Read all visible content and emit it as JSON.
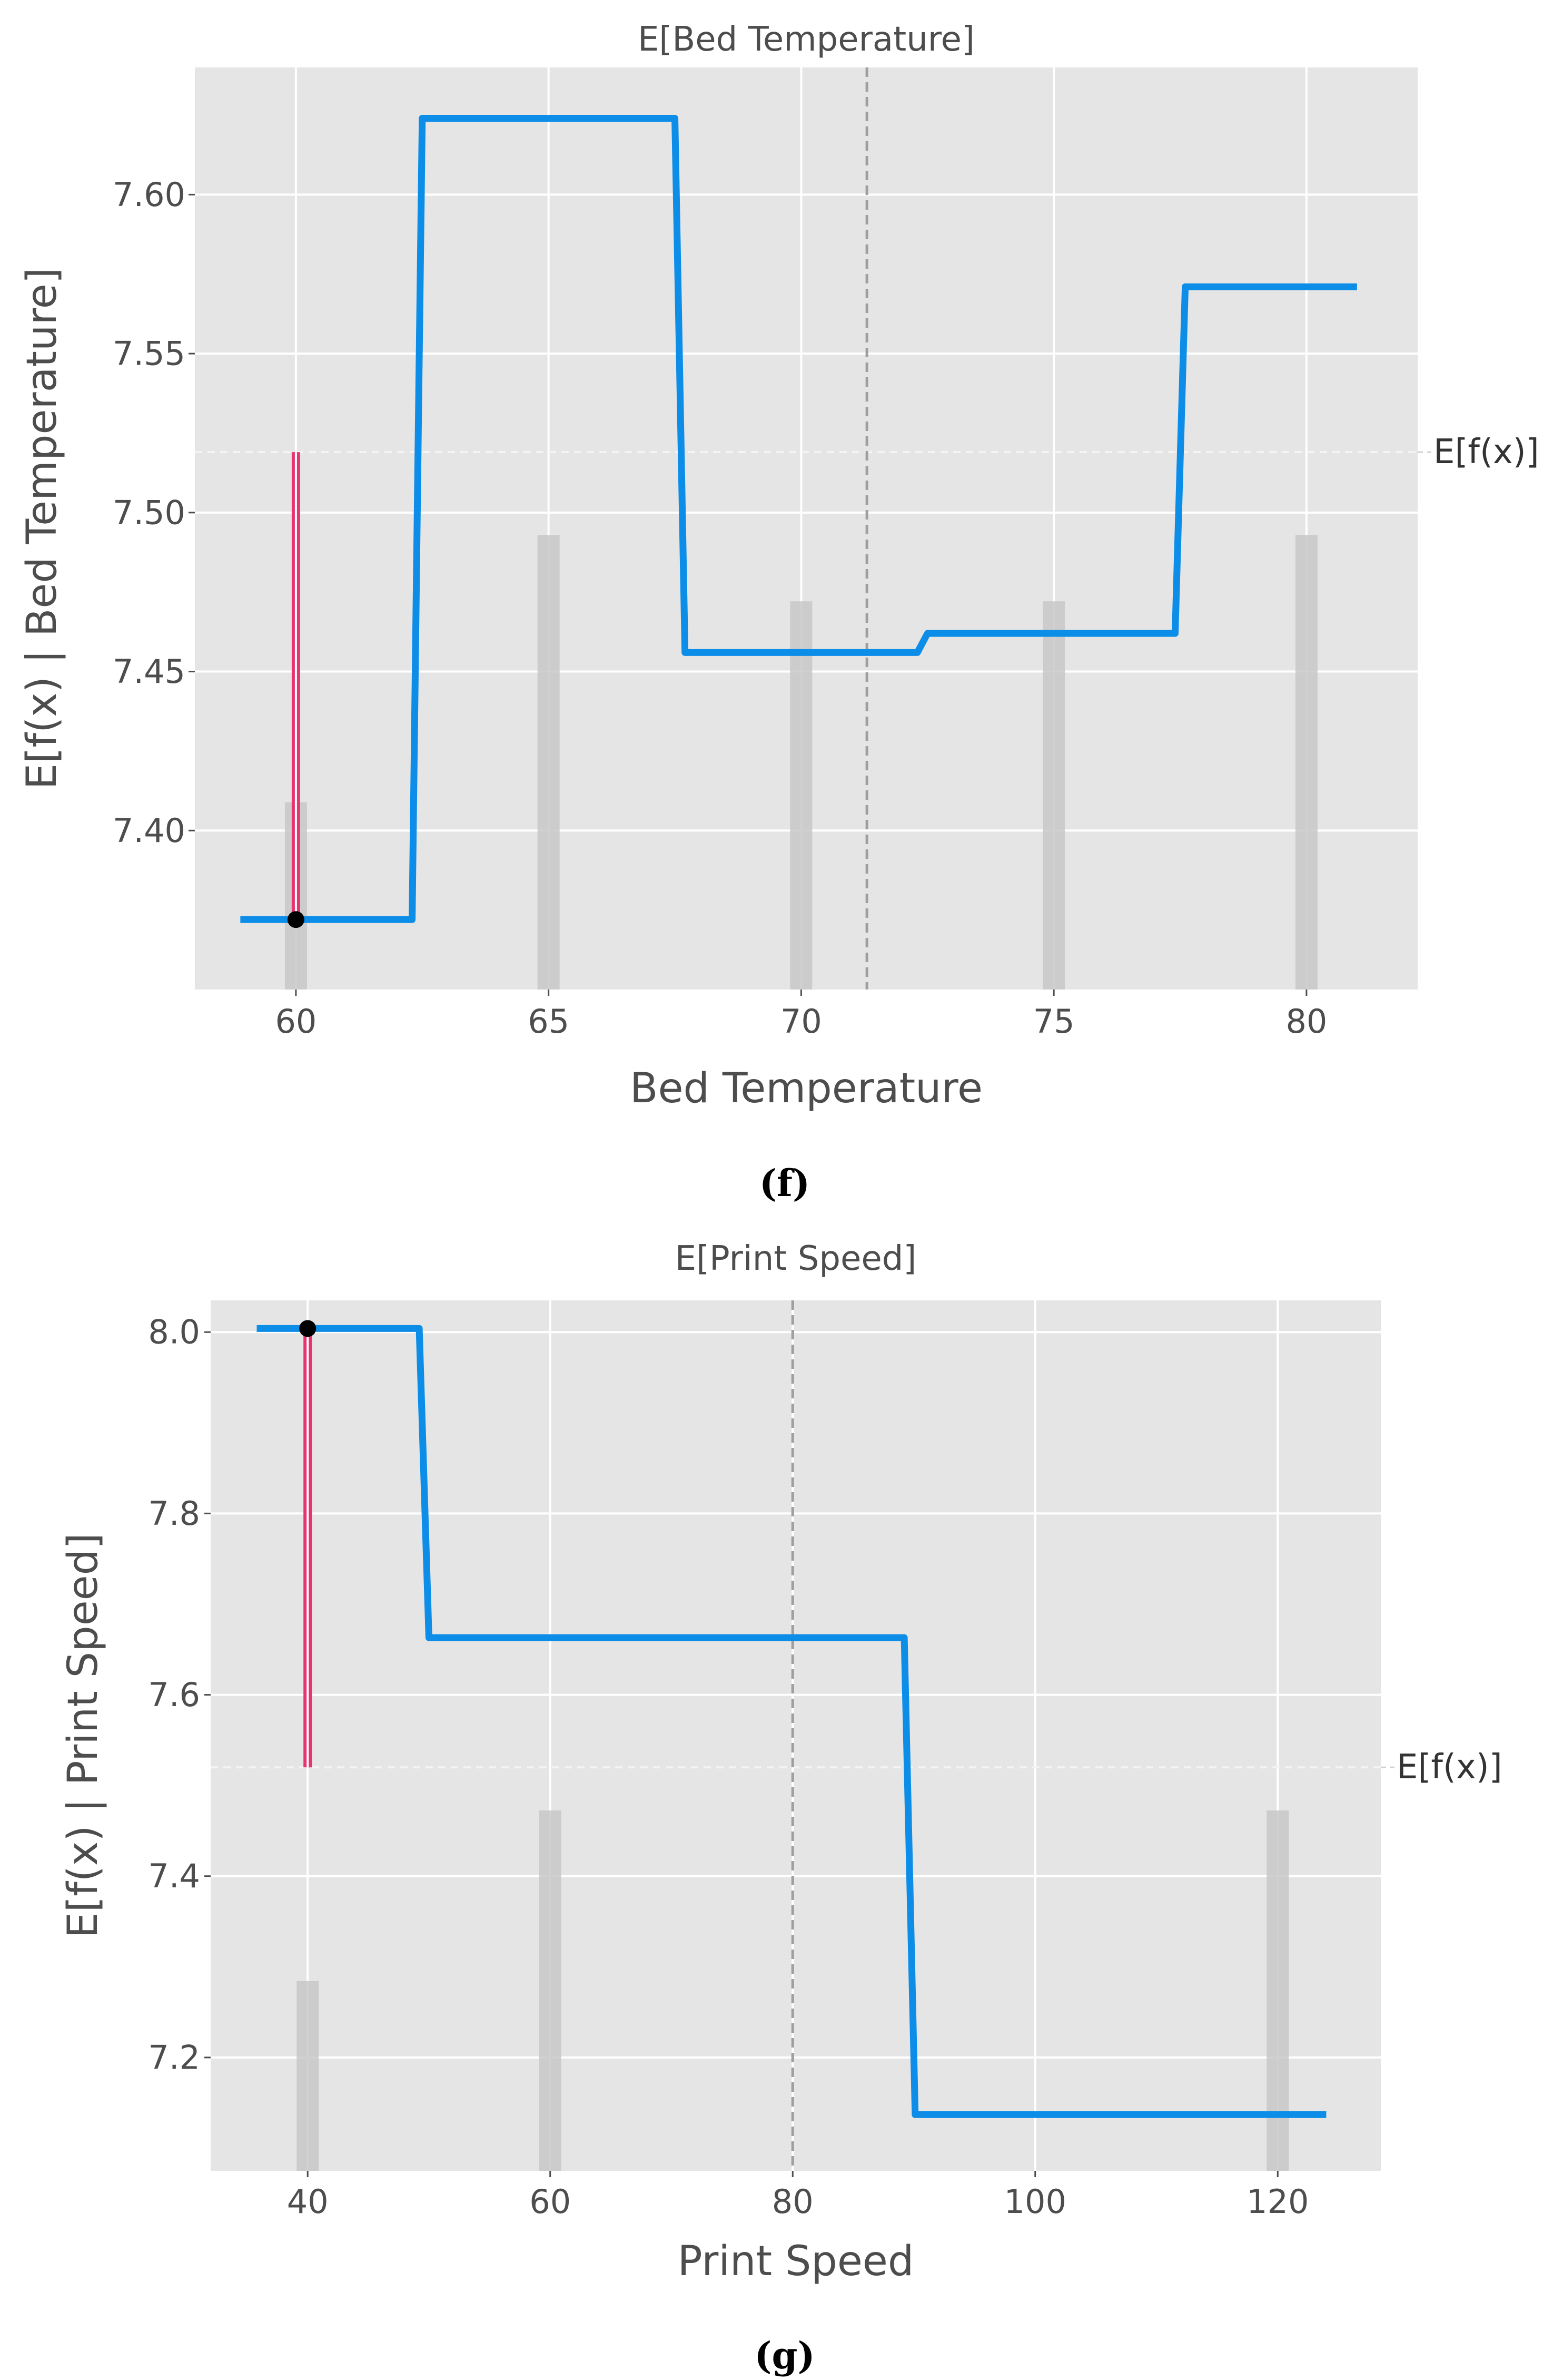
{
  "colors": {
    "panel": "#e5e5e5",
    "grid": "#ffffff",
    "line": "#0b8de8",
    "red_bar": "#e8336e",
    "hist": "#c8c8c8",
    "point": "#000000",
    "ref": "#9e9e9e"
  },
  "chart_data": [
    {
      "type": "line",
      "panel_caption": "(f)",
      "title": "E[Bed Temperature]",
      "xlabel": "Bed Temperature",
      "ylabel": "E[f(x) | Bed Temperature]",
      "xlim": [
        58.0,
        82.2
      ],
      "ylim": [
        7.35,
        7.64
      ],
      "xticks": [
        60,
        65,
        70,
        75,
        80
      ],
      "xtick_labels": [
        "60",
        "65",
        "70",
        "75",
        "80"
      ],
      "yticks": [
        7.4,
        7.45,
        7.5,
        7.55,
        7.6
      ],
      "ytick_labels": [
        "7.40",
        "7.45",
        "7.50",
        "7.55",
        "7.60"
      ],
      "grid": true,
      "series": [
        {
          "x": [
            58.9,
            62.3,
            62.5,
            67.5,
            67.7,
            72.3,
            72.5,
            77.4,
            77.6,
            81.0
          ],
          "y": [
            7.372,
            7.372,
            7.624,
            7.624,
            7.456,
            7.456,
            7.462,
            7.462,
            7.571,
            7.571
          ]
        }
      ],
      "expected_value": {
        "label": "E[f(x)]",
        "y": 7.519
      },
      "expected_feature": {
        "x": 71.3
      },
      "sample_point": {
        "x": 60,
        "y": 7.372
      },
      "histogram": {
        "x": [
          60,
          65,
          70,
          75,
          80
        ],
        "height_fraction": [
          0.203,
          0.493,
          0.421,
          0.421,
          0.493
        ]
      }
    },
    {
      "type": "line",
      "panel_caption": "(g)",
      "title": "E[Print Speed]",
      "xlabel": "Print Speed",
      "ylabel": "E[f(x) | Print Speed]",
      "xlim": [
        32.0,
        128.5
      ],
      "ylim": [
        7.075,
        8.035
      ],
      "xticks": [
        40,
        60,
        80,
        100,
        120
      ],
      "xtick_labels": [
        "40",
        "60",
        "80",
        "100",
        "120"
      ],
      "yticks": [
        7.2,
        7.4,
        7.6,
        7.8,
        8.0
      ],
      "ytick_labels": [
        "7.2",
        "7.4",
        "7.6",
        "7.8",
        "8.0"
      ],
      "grid": true,
      "series": [
        {
          "x": [
            35.8,
            49.2,
            50.0,
            89.2,
            90.1,
            124.0
          ],
          "y": [
            8.004,
            8.004,
            7.663,
            7.663,
            7.137,
            7.137
          ]
        }
      ],
      "expected_value": {
        "label": "E[f(x)]",
        "y": 7.52
      },
      "expected_feature": {
        "x": 80.0
      },
      "sample_point": {
        "x": 40,
        "y": 8.004
      },
      "histogram": {
        "x": [
          40,
          60,
          120
        ],
        "height_fraction": [
          0.218,
          0.414,
          0.414
        ]
      }
    }
  ]
}
